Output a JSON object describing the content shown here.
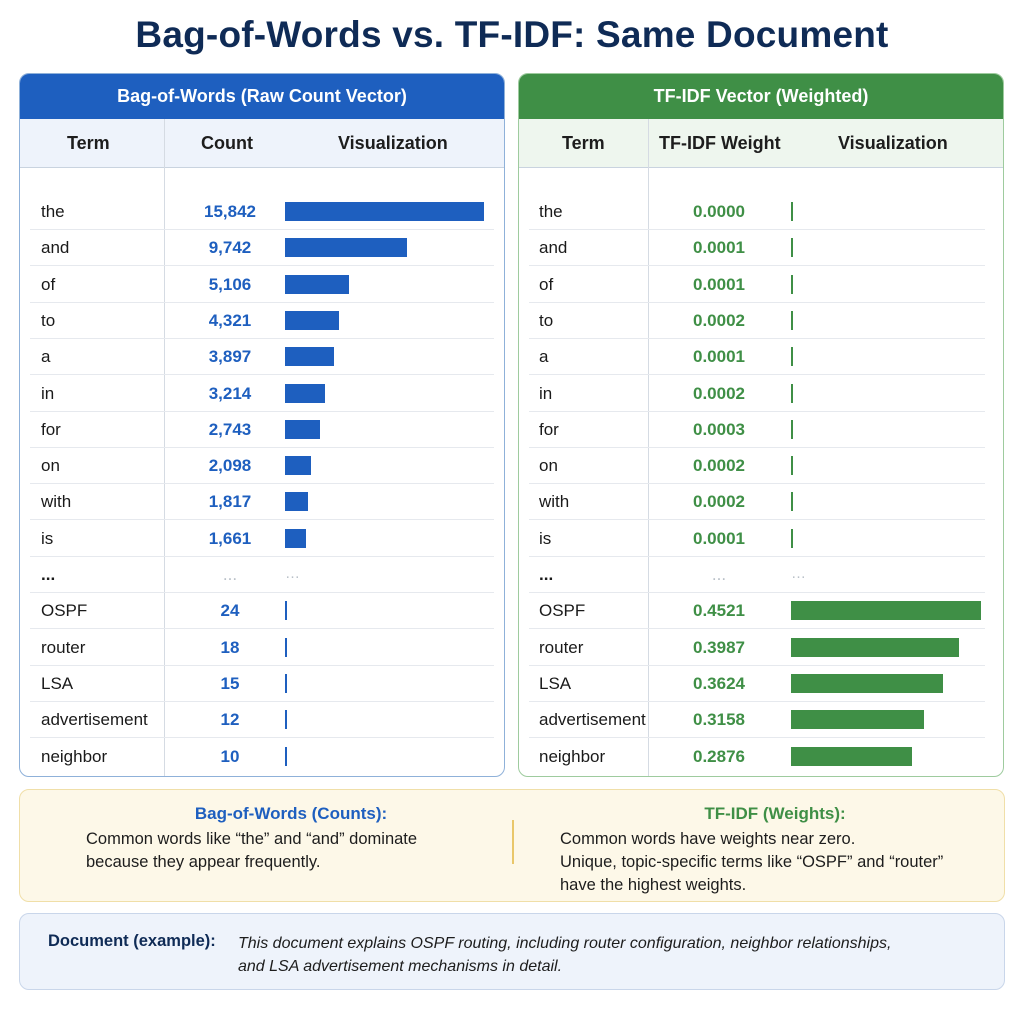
{
  "title": "Bag-of-Words vs. TF-IDF: Same Document",
  "colors": {
    "bow_accent": "#1e5fbf",
    "tfidf_accent": "#3f8f46",
    "title": "#0f2b56"
  },
  "chart_data": [
    {
      "type": "table",
      "title": "Bag-of-Words (Raw Count Vector)",
      "columns": [
        "Term",
        "Count",
        "Visualization"
      ],
      "value_unit": "count",
      "rows": [
        {
          "term": "the",
          "value": 15842,
          "display": "15,842"
        },
        {
          "term": "and",
          "value": 9742,
          "display": "9,742"
        },
        {
          "term": "of",
          "value": 5106,
          "display": "5,106"
        },
        {
          "term": "to",
          "value": 4321,
          "display": "4,321"
        },
        {
          "term": "a",
          "value": 3897,
          "display": "3,897"
        },
        {
          "term": "in",
          "value": 3214,
          "display": "3,214"
        },
        {
          "term": "for",
          "value": 2743,
          "display": "2,743"
        },
        {
          "term": "on",
          "value": 2098,
          "display": "2,098"
        },
        {
          "term": "with",
          "value": 1817,
          "display": "1,817"
        },
        {
          "term": "is",
          "value": 1661,
          "display": "1,661"
        },
        {
          "term": "...",
          "value": null,
          "display": "..."
        },
        {
          "term": "OSPF",
          "value": 24,
          "display": "24"
        },
        {
          "term": "router",
          "value": 18,
          "display": "18"
        },
        {
          "term": "LSA",
          "value": 15,
          "display": "15"
        },
        {
          "term": "advertisement",
          "value": 12,
          "display": "12"
        },
        {
          "term": "neighbor",
          "value": 10,
          "display": "10"
        }
      ]
    },
    {
      "type": "table",
      "title": "TF-IDF Vector (Weighted)",
      "columns": [
        "Term",
        "TF-IDF Weight",
        "Visualization"
      ],
      "value_unit": "weight",
      "rows": [
        {
          "term": "the",
          "value": 0.0,
          "display": "0.0000"
        },
        {
          "term": "and",
          "value": 0.0001,
          "display": "0.0001"
        },
        {
          "term": "of",
          "value": 0.0001,
          "display": "0.0001"
        },
        {
          "term": "to",
          "value": 0.0002,
          "display": "0.0002"
        },
        {
          "term": "a",
          "value": 0.0001,
          "display": "0.0001"
        },
        {
          "term": "in",
          "value": 0.0002,
          "display": "0.0002"
        },
        {
          "term": "for",
          "value": 0.0003,
          "display": "0.0003"
        },
        {
          "term": "on",
          "value": 0.0002,
          "display": "0.0002"
        },
        {
          "term": "with",
          "value": 0.0002,
          "display": "0.0002"
        },
        {
          "term": "is",
          "value": 0.0001,
          "display": "0.0001"
        },
        {
          "term": "...",
          "value": null,
          "display": "..."
        },
        {
          "term": "OSPF",
          "value": 0.4521,
          "display": "0.4521"
        },
        {
          "term": "router",
          "value": 0.3987,
          "display": "0.3987"
        },
        {
          "term": "LSA",
          "value": 0.3624,
          "display": "0.3624"
        },
        {
          "term": "advertisement",
          "value": 0.3158,
          "display": "0.3158"
        },
        {
          "term": "neighbor",
          "value": 0.2876,
          "display": "0.2876"
        }
      ]
    }
  ],
  "comparison": {
    "bow": {
      "title": "Bag-of-Words (Counts):",
      "line1": "Common words like “the” and “and” dominate",
      "line2": "because they appear frequently."
    },
    "tfidf": {
      "title": "TF-IDF (Weights):",
      "line1": "Common words have weights near zero.",
      "line2": "Unique, topic-specific terms like “OSPF” and “router”",
      "line3": "have the highest weights."
    }
  },
  "document": {
    "label": "Document (example):",
    "line1": "This document explains OSPF routing, including router configuration, neighbor relationships,",
    "line2": "and LSA advertisement mechanisms in detail."
  }
}
